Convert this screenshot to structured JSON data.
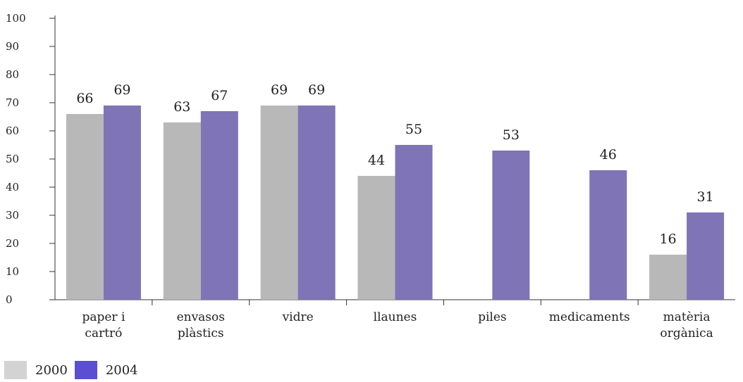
{
  "chart_data": {
    "type": "bar",
    "categories": [
      [
        "paper i",
        "cartró"
      ],
      [
        "envasos",
        "plàstics"
      ],
      [
        "vidre"
      ],
      [
        "llaunes"
      ],
      [
        "piles"
      ],
      [
        "medicaments"
      ],
      [
        "matèria",
        "orgànica"
      ]
    ],
    "series": [
      {
        "name": "2000",
        "color": "#b8b8b8",
        "values": [
          66,
          63,
          69,
          44,
          null,
          null,
          16
        ]
      },
      {
        "name": "2004",
        "color": "#7e74b6",
        "values": [
          69,
          67,
          69,
          55,
          53,
          46,
          31
        ]
      }
    ],
    "ylim": [
      0,
      100
    ],
    "yticks": [
      0,
      10,
      20,
      30,
      40,
      50,
      60,
      70,
      80,
      90,
      100
    ],
    "grid": false,
    "legend_position": "bottom-left",
    "title": "",
    "xlabel": "",
    "ylabel": ""
  },
  "legend": [
    {
      "label": "2000",
      "color": "#d3d3d3"
    },
    {
      "label": "2004",
      "color": "#5b4ed0"
    }
  ]
}
